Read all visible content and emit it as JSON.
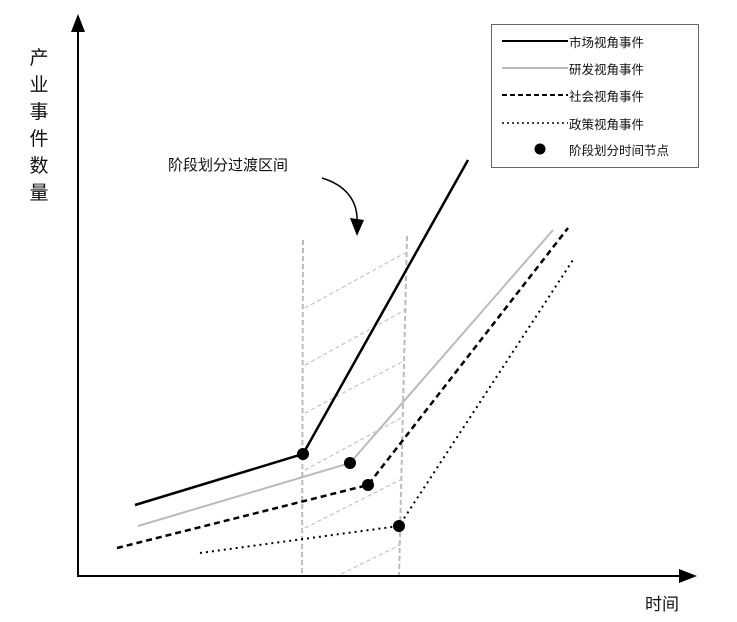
{
  "y_axis_label": "产业事件数量",
  "x_axis_label": "时间",
  "annotation": "阶段划分过渡区间",
  "legend": [
    {
      "label": "市场视角事件",
      "style": "solid",
      "color": "#000000"
    },
    {
      "label": "研发视角事件",
      "style": "solid",
      "color": "#bbbbbb"
    },
    {
      "label": "社会视角事件",
      "style": "dashed",
      "color": "#000000"
    },
    {
      "label": "政策视角事件",
      "style": "dotted",
      "color": "#000000"
    },
    {
      "label": "阶段划分时间节点",
      "style": "dot",
      "color": "#000000"
    }
  ],
  "transition_band_color": "#bbbbbb"
}
